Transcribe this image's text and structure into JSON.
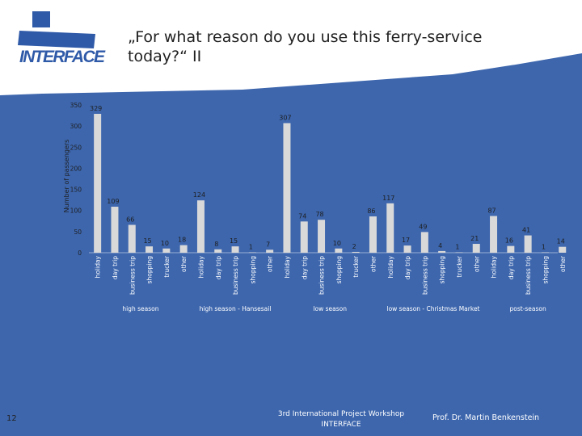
{
  "slide": {
    "title_line1": "„For what reason do you use this ferry-service",
    "title_line2": "today?“ II",
    "page_number": "12",
    "footer_line1": "3rd International Project Workshop",
    "footer_line2": "INTERFACE",
    "author": "Prof. Dr. Martin Benkenstein",
    "logo_text": "INTERFACE"
  },
  "colors": {
    "background_blue": "#3d66ad",
    "bar": "#d9d9d9",
    "logo_blue": "#2f5aa8"
  },
  "chart_data": {
    "type": "bar",
    "title": "",
    "ylabel": "Number of passengers",
    "xlabel": "",
    "ylim": [
      0,
      350
    ],
    "yticks": [
      0,
      50,
      100,
      150,
      200,
      250,
      300,
      350
    ],
    "grid": false,
    "groups": [
      {
        "name": "high season",
        "categories": [
          "holiday",
          "day trip",
          "business trip",
          "shopping",
          "trucker",
          "other"
        ],
        "values": [
          329,
          109,
          66,
          15,
          10,
          18
        ]
      },
      {
        "name": "high season - Hansesail",
        "categories": [
          "holiday",
          "day trip",
          "business trip",
          "shopping",
          "other"
        ],
        "values": [
          124,
          8,
          15,
          1,
          7
        ]
      },
      {
        "name": "low season",
        "categories": [
          "holiday",
          "day trip",
          "business trip",
          "shopping",
          "trucker",
          "other"
        ],
        "values": [
          307,
          74,
          78,
          10,
          2,
          86
        ]
      },
      {
        "name": "low season - Christmas Market",
        "categories": [
          "holiday",
          "day trip",
          "business trip",
          "shopping",
          "trucker",
          "other"
        ],
        "values": [
          117,
          17,
          49,
          4,
          1,
          21
        ]
      },
      {
        "name": "post-season",
        "categories": [
          "holiday",
          "day trip",
          "business trip",
          "shopping",
          "other"
        ],
        "values": [
          87,
          16,
          41,
          1,
          14
        ]
      }
    ]
  }
}
